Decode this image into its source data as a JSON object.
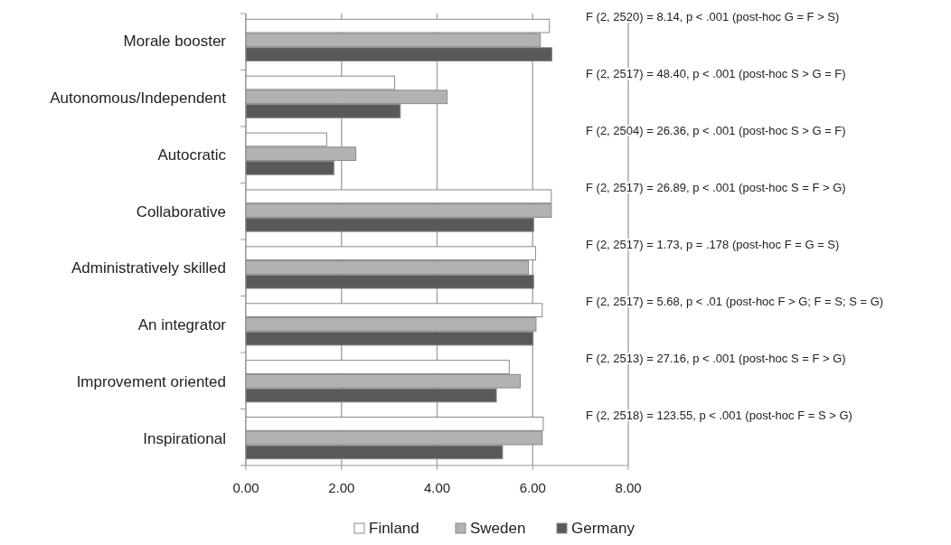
{
  "chart_data": {
    "type": "bar",
    "orientation": "horizontal",
    "categories": [
      "Morale booster",
      "Autonomous/Independent",
      "Autocratic",
      "Collaborative",
      "Administratively skilled",
      "An integrator",
      "Improvement oriented",
      "Inspirational"
    ],
    "series": [
      {
        "name": "Finland",
        "color": "#ffffff",
        "values": [
          6.35,
          3.11,
          1.69,
          6.39,
          6.06,
          6.2,
          5.51,
          6.22
        ]
      },
      {
        "name": "Sweden",
        "color": "#b2b2b2",
        "values": [
          6.16,
          4.21,
          2.3,
          6.39,
          5.91,
          6.07,
          5.74,
          6.2
        ]
      },
      {
        "name": "Germany",
        "color": "#595959",
        "values": [
          6.4,
          3.23,
          1.84,
          6.02,
          6.02,
          6.01,
          5.24,
          5.37
        ]
      }
    ],
    "xlim": [
      0,
      8
    ],
    "xticks": [
      {
        "value": 0,
        "label": "0.00"
      },
      {
        "value": 2,
        "label": "2.00"
      },
      {
        "value": 4,
        "label": "4.00"
      },
      {
        "value": 6,
        "label": "6.00"
      },
      {
        "value": 8,
        "label": "8.00"
      }
    ],
    "grid": "x",
    "legend": "bottom",
    "annotations": [
      "F (2, 2520) = 8.14, p < .001 (post-hoc G = F > S)",
      "F (2, 2517) = 48.40, p < .001 (post-hoc S > G = F)",
      "F (2, 2504) = 26.36, p < .001 (post-hoc S > G = F)",
      "F (2, 2517) = 26.89, p < .001 (post-hoc S = F > G)",
      "F (2, 2517) = 1.73, p = .178 (post-hoc F = G = S)",
      "F (2, 2517) = 5.68, p < .01 (post-hoc F > G; F = S; S = G)",
      "F (2, 2513) = 27.16, p < .001 (post-hoc S = F > G)",
      "F (2, 2518) = 123.55, p < .001 (post-hoc F = S > G)"
    ]
  }
}
